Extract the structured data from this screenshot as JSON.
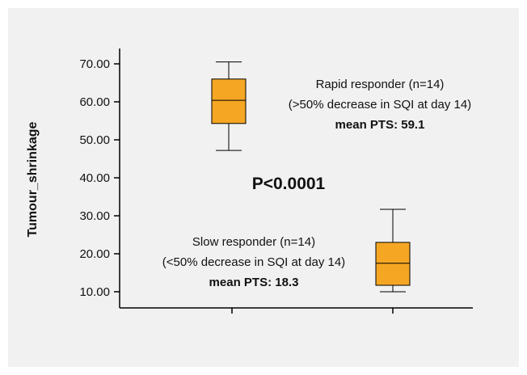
{
  "chart_data": {
    "type": "box",
    "title": "",
    "xlabel": "",
    "ylabel": "Tumour_shrinkage",
    "ylim": [
      8,
      74
    ],
    "yticks": [
      "10.00",
      "20.00",
      "30.00",
      "40.00",
      "50.00",
      "60.00",
      "70.00"
    ],
    "ytick_values": [
      10,
      20,
      30,
      40,
      50,
      60,
      70
    ],
    "grid": false,
    "box_color": "#f5a623",
    "series": [
      {
        "min": 47.2,
        "q1": 54.3,
        "median": 60.4,
        "q3": 66.0,
        "max": 70.5,
        "annotation": {
          "line1": "Rapid responder (n=14)",
          "line2": "(>50% decrease in SQI at day 14)",
          "line3": "mean PTS: 59.1"
        }
      },
      {
        "min": 10.0,
        "q1": 11.7,
        "median": 17.5,
        "q3": 23.0,
        "max": 31.7,
        "annotation": {
          "line1": "Slow responder (n=14)",
          "line2": "(<50% decrease in SQI at day 14)",
          "line3": "mean PTS: 18.3"
        }
      }
    ],
    "pvalue": "P<0.0001"
  }
}
